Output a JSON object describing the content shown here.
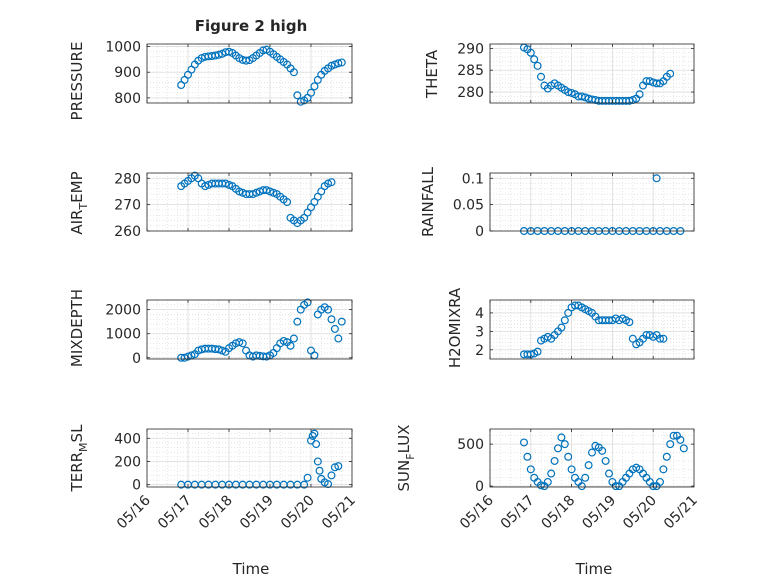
{
  "figure": {
    "title": "Figure 2 high",
    "marker_color": "#0072bd",
    "axes_color": "#262626",
    "grid": true,
    "minor_grid": true
  },
  "chart_data": [
    {
      "type": "scatter",
      "ylabel": "PRESSURE",
      "ylim": [
        780,
        1010
      ],
      "yticks": [
        800,
        900,
        1000
      ],
      "ytick_labels": [
        "800",
        "900",
        "1000"
      ],
      "x": [
        "05/16 20:00",
        "05/16 22:00",
        "05/17 00:00",
        "05/17 02:00",
        "05/17 04:00",
        "05/17 06:00",
        "05/17 08:00",
        "05/17 10:00",
        "05/17 12:00",
        "05/17 14:00",
        "05/17 16:00",
        "05/17 18:00",
        "05/17 20:00",
        "05/17 22:00",
        "05/18 00:00",
        "05/18 02:00",
        "05/18 04:00",
        "05/18 06:00",
        "05/18 08:00",
        "05/18 10:00",
        "05/18 12:00",
        "05/18 14:00",
        "05/18 16:00",
        "05/18 18:00",
        "05/18 20:00",
        "05/18 22:00",
        "05/19 00:00",
        "05/19 02:00",
        "05/19 04:00",
        "05/19 06:00",
        "05/19 08:00",
        "05/19 10:00",
        "05/19 12:00",
        "05/19 14:00",
        "05/19 16:00",
        "05/19 18:00",
        "05/19 20:00",
        "05/19 22:00",
        "05/20 00:00",
        "05/20 02:00",
        "05/20 04:00",
        "05/20 06:00",
        "05/20 08:00",
        "05/20 10:00",
        "05/20 12:00",
        "05/20 14:00",
        "05/20 16:00",
        "05/20 18:00"
      ],
      "y": [
        850,
        870,
        890,
        910,
        930,
        945,
        955,
        960,
        962,
        963,
        965,
        968,
        972,
        978,
        980,
        975,
        965,
        955,
        948,
        945,
        947,
        955,
        965,
        975,
        985,
        988,
        980,
        970,
        960,
        950,
        940,
        930,
        915,
        900,
        810,
        785,
        790,
        800,
        820,
        845,
        870,
        890,
        905,
        915,
        925,
        930,
        935,
        938
      ]
    },
    {
      "type": "scatter",
      "ylabel": "THETA",
      "ylim": [
        277.5,
        291
      ],
      "yticks": [
        280,
        285,
        290
      ],
      "ytick_labels": [
        "280",
        "285",
        "290"
      ],
      "x": [
        "05/16 20:00",
        "05/16 22:00",
        "05/17 00:00",
        "05/17 02:00",
        "05/17 04:00",
        "05/17 06:00",
        "05/17 08:00",
        "05/17 10:00",
        "05/17 12:00",
        "05/17 14:00",
        "05/17 16:00",
        "05/17 18:00",
        "05/17 20:00",
        "05/17 22:00",
        "05/18 00:00",
        "05/18 02:00",
        "05/18 04:00",
        "05/18 06:00",
        "05/18 08:00",
        "05/18 10:00",
        "05/18 12:00",
        "05/18 14:00",
        "05/18 16:00",
        "05/18 18:00",
        "05/18 20:00",
        "05/18 22:00",
        "05/19 00:00",
        "05/19 02:00",
        "05/19 04:00",
        "05/19 06:00",
        "05/19 08:00",
        "05/19 10:00",
        "05/19 12:00",
        "05/19 14:00",
        "05/19 16:00",
        "05/19 18:00",
        "05/19 20:00",
        "05/19 22:00",
        "05/20 00:00",
        "05/20 02:00",
        "05/20 04:00",
        "05/20 06:00",
        "05/20 08:00",
        "05/20 10:00"
      ],
      "y": [
        290.2,
        289.8,
        289.0,
        287.5,
        286.0,
        283.5,
        281.5,
        280.8,
        281.5,
        282.0,
        281.5,
        281.0,
        280.5,
        280.0,
        279.8,
        279.5,
        279.0,
        279.0,
        278.8,
        278.5,
        278.3,
        278.2,
        278.0,
        278.0,
        278.0,
        278.0,
        278.0,
        278.0,
        278.0,
        278.0,
        278.0,
        278.0,
        278.2,
        278.5,
        279.5,
        281.5,
        282.5,
        282.5,
        282.2,
        282.0,
        282.0,
        282.5,
        283.5,
        284.2
      ]
    },
    {
      "type": "scatter",
      "ylabel": "AIR_TEMP",
      "ylabel_main": "AIR",
      "ylabel_sub": "T",
      "ylabel_rest": "EMP",
      "ylim": [
        260,
        282
      ],
      "yticks": [
        260,
        270,
        280
      ],
      "ytick_labels": [
        "260",
        "270",
        "280"
      ],
      "x": [
        "05/16 20:00",
        "05/16 22:00",
        "05/17 00:00",
        "05/17 02:00",
        "05/17 04:00",
        "05/17 06:00",
        "05/17 08:00",
        "05/17 10:00",
        "05/17 12:00",
        "05/17 14:00",
        "05/17 16:00",
        "05/17 18:00",
        "05/17 20:00",
        "05/17 22:00",
        "05/18 00:00",
        "05/18 02:00",
        "05/18 04:00",
        "05/18 06:00",
        "05/18 08:00",
        "05/18 10:00",
        "05/18 12:00",
        "05/18 14:00",
        "05/18 16:00",
        "05/18 18:00",
        "05/18 20:00",
        "05/18 22:00",
        "05/19 00:00",
        "05/19 02:00",
        "05/19 04:00",
        "05/19 06:00",
        "05/19 08:00",
        "05/19 10:00",
        "05/19 12:00",
        "05/19 14:00",
        "05/19 16:00",
        "05/19 18:00",
        "05/19 20:00",
        "05/19 22:00",
        "05/20 00:00",
        "05/20 02:00",
        "05/20 04:00",
        "05/20 06:00",
        "05/20 08:00",
        "05/20 10:00",
        "05/20 12:00"
      ],
      "y": [
        277,
        278,
        279,
        280,
        281,
        280,
        278,
        277,
        277.5,
        278,
        278,
        278,
        278,
        278,
        277.5,
        277,
        276,
        275,
        274.5,
        274,
        274,
        274,
        274.5,
        275,
        275.5,
        275.5,
        275,
        274.5,
        274,
        273,
        272,
        271,
        265,
        264,
        263,
        264,
        265,
        267,
        269,
        271,
        273,
        275,
        277,
        278,
        278.5
      ]
    },
    {
      "type": "scatter",
      "ylabel": "RAINFALL",
      "ylim": [
        0,
        0.11
      ],
      "yticks": [
        0,
        0.05,
        0.1
      ],
      "ytick_labels": [
        "0",
        "0.05",
        "0.1"
      ],
      "x": [
        "05/16 20:00",
        "05/17 00:00",
        "05/17 04:00",
        "05/17 08:00",
        "05/17 12:00",
        "05/17 16:00",
        "05/17 20:00",
        "05/18 00:00",
        "05/18 04:00",
        "05/18 08:00",
        "05/18 12:00",
        "05/18 16:00",
        "05/18 20:00",
        "05/19 00:00",
        "05/19 04:00",
        "05/19 08:00",
        "05/19 12:00",
        "05/19 16:00",
        "05/19 20:00",
        "05/20 00:00",
        "05/20 02:00",
        "05/20 04:00",
        "05/20 08:00",
        "05/20 12:00",
        "05/20 16:00"
      ],
      "y": [
        0,
        0,
        0,
        0,
        0,
        0,
        0,
        0,
        0,
        0,
        0,
        0,
        0,
        0,
        0,
        0,
        0,
        0,
        0,
        0,
        0.1,
        0,
        0,
        0,
        0
      ]
    },
    {
      "type": "scatter",
      "ylabel": "MIXDEPTH",
      "ylim": [
        -50,
        2400
      ],
      "yticks": [
        0,
        1000,
        2000
      ],
      "ytick_labels": [
        "0",
        "1000",
        "2000"
      ],
      "x": [
        "05/16 20:00",
        "05/16 22:00",
        "05/17 00:00",
        "05/17 02:00",
        "05/17 04:00",
        "05/17 06:00",
        "05/17 08:00",
        "05/17 10:00",
        "05/17 12:00",
        "05/17 14:00",
        "05/17 16:00",
        "05/17 18:00",
        "05/17 20:00",
        "05/17 22:00",
        "05/18 00:00",
        "05/18 02:00",
        "05/18 04:00",
        "05/18 06:00",
        "05/18 08:00",
        "05/18 10:00",
        "05/18 12:00",
        "05/18 14:00",
        "05/18 16:00",
        "05/18 18:00",
        "05/18 20:00",
        "05/18 22:00",
        "05/19 00:00",
        "05/19 02:00",
        "05/19 04:00",
        "05/19 06:00",
        "05/19 08:00",
        "05/19 10:00",
        "05/19 12:00",
        "05/19 14:00",
        "05/19 16:00",
        "05/19 18:00",
        "05/19 20:00",
        "05/19 22:00",
        "05/20 00:00",
        "05/20 02:00",
        "05/20 04:00",
        "05/20 06:00",
        "05/20 08:00",
        "05/20 10:00",
        "05/20 12:00",
        "05/20 14:00",
        "05/20 16:00",
        "05/20 18:00"
      ],
      "y": [
        0,
        0,
        50,
        100,
        150,
        300,
        350,
        380,
        380,
        380,
        360,
        350,
        300,
        250,
        400,
        500,
        600,
        650,
        600,
        300,
        100,
        50,
        100,
        80,
        60,
        50,
        100,
        200,
        400,
        600,
        700,
        650,
        500,
        800,
        1500,
        2000,
        2200,
        2300,
        300,
        100,
        1800,
        2000,
        2100,
        2000,
        1600,
        1200,
        800,
        1500
      ]
    },
    {
      "type": "scatter",
      "ylabel": "H2OMIXRA",
      "ylim": [
        1.5,
        4.7
      ],
      "yticks": [
        2,
        3,
        4
      ],
      "ytick_labels": [
        "2",
        "3",
        "4"
      ],
      "x": [
        "05/16 20:00",
        "05/16 22:00",
        "05/17 00:00",
        "05/17 02:00",
        "05/17 04:00",
        "05/17 06:00",
        "05/17 08:00",
        "05/17 10:00",
        "05/17 12:00",
        "05/17 14:00",
        "05/17 16:00",
        "05/17 18:00",
        "05/17 20:00",
        "05/17 22:00",
        "05/18 00:00",
        "05/18 02:00",
        "05/18 04:00",
        "05/18 06:00",
        "05/18 08:00",
        "05/18 10:00",
        "05/18 12:00",
        "05/18 14:00",
        "05/18 16:00",
        "05/18 18:00",
        "05/18 20:00",
        "05/18 22:00",
        "05/19 00:00",
        "05/19 02:00",
        "05/19 04:00",
        "05/19 06:00",
        "05/19 08:00",
        "05/19 10:00",
        "05/19 12:00",
        "05/19 14:00",
        "05/19 16:00",
        "05/19 18:00",
        "05/19 20:00",
        "05/19 22:00",
        "05/20 00:00",
        "05/20 02:00",
        "05/20 04:00",
        "05/20 06:00"
      ],
      "y": [
        1.75,
        1.75,
        1.75,
        1.8,
        1.9,
        2.5,
        2.6,
        2.7,
        2.6,
        2.8,
        3.0,
        3.2,
        3.6,
        4.0,
        4.3,
        4.4,
        4.4,
        4.3,
        4.2,
        4.1,
        4.0,
        3.8,
        3.6,
        3.6,
        3.6,
        3.6,
        3.6,
        3.7,
        3.6,
        3.7,
        3.6,
        3.5,
        2.6,
        2.3,
        2.4,
        2.6,
        2.8,
        2.8,
        2.7,
        2.8,
        2.6,
        2.6
      ]
    },
    {
      "type": "scatter",
      "ylabel": "TERR_MSL",
      "ylabel_main": "TERR",
      "ylabel_sub": "M",
      "ylabel_rest": "SL",
      "ylim": [
        -20,
        480
      ],
      "yticks": [
        0,
        200,
        400
      ],
      "ytick_labels": [
        "0",
        "200",
        "400"
      ],
      "x": [
        "05/16 20:00",
        "05/17 00:00",
        "05/17 04:00",
        "05/17 08:00",
        "05/17 12:00",
        "05/17 16:00",
        "05/17 20:00",
        "05/18 00:00",
        "05/18 04:00",
        "05/18 08:00",
        "05/18 12:00",
        "05/18 16:00",
        "05/18 20:00",
        "05/19 00:00",
        "05/19 04:00",
        "05/19 08:00",
        "05/19 12:00",
        "05/19 16:00",
        "05/19 20:00",
        "05/19 22:00",
        "05/20 00:00",
        "05/20 01:00",
        "05/20 02:00",
        "05/20 03:00",
        "05/20 04:00",
        "05/20 05:00",
        "05/20 06:00",
        "05/20 08:00",
        "05/20 10:00",
        "05/20 12:00",
        "05/20 14:00",
        "05/20 16:00"
      ],
      "y": [
        0,
        0,
        0,
        0,
        0,
        0,
        0,
        0,
        0,
        0,
        0,
        0,
        0,
        0,
        0,
        0,
        0,
        0,
        0,
        60,
        380,
        420,
        440,
        350,
        200,
        120,
        50,
        20,
        5,
        80,
        150,
        160
      ]
    },
    {
      "type": "scatter",
      "ylabel": "SUN_FLUX",
      "ylabel_main": "SUN",
      "ylabel_sub": "F",
      "ylabel_rest": "LUX",
      "ylim": [
        -10,
        680
      ],
      "yticks": [
        0,
        500
      ],
      "ytick_labels": [
        "0",
        "500"
      ],
      "x": [
        "05/16 20:00",
        "05/16 22:00",
        "05/17 00:00",
        "05/17 02:00",
        "05/17 04:00",
        "05/17 06:00",
        "05/17 08:00",
        "05/17 10:00",
        "05/17 12:00",
        "05/17 14:00",
        "05/17 16:00",
        "05/17 18:00",
        "05/17 20:00",
        "05/17 22:00",
        "05/18 00:00",
        "05/18 02:00",
        "05/18 04:00",
        "05/18 06:00",
        "05/18 08:00",
        "05/18 10:00",
        "05/18 12:00",
        "05/18 14:00",
        "05/18 16:00",
        "05/18 18:00",
        "05/18 20:00",
        "05/18 22:00",
        "05/19 00:00",
        "05/19 02:00",
        "05/19 04:00",
        "05/19 06:00",
        "05/19 08:00",
        "05/19 10:00",
        "05/19 12:00",
        "05/19 14:00",
        "05/19 16:00",
        "05/19 18:00",
        "05/19 20:00",
        "05/19 22:00",
        "05/20 00:00",
        "05/20 02:00",
        "05/20 04:00",
        "05/20 06:00",
        "05/20 08:00",
        "05/20 10:00",
        "05/20 12:00",
        "05/20 14:00",
        "05/20 16:00",
        "05/20 18:00"
      ],
      "y": [
        520,
        350,
        200,
        100,
        50,
        10,
        0,
        50,
        150,
        300,
        450,
        580,
        500,
        350,
        200,
        100,
        50,
        0,
        100,
        250,
        400,
        480,
        460,
        420,
        300,
        150,
        50,
        0,
        0,
        50,
        100,
        150,
        200,
        220,
        200,
        150,
        100,
        50,
        0,
        0,
        50,
        200,
        350,
        500,
        600,
        600,
        550,
        450
      ]
    }
  ],
  "shared_x": {
    "label": "Time",
    "range": [
      "05/16 00:00",
      "05/21 00:00"
    ],
    "tick_labels": [
      "05/16",
      "05/17",
      "05/18",
      "05/19",
      "05/20",
      "05/21"
    ]
  }
}
